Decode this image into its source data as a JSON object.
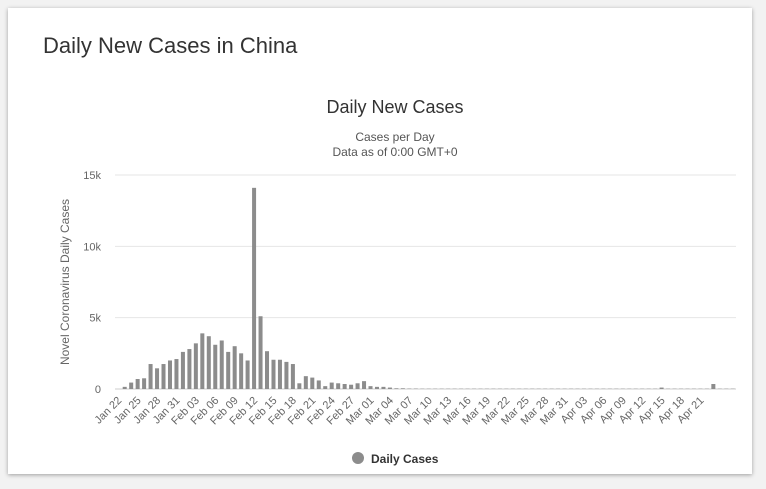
{
  "page": {
    "heading": "Daily New Cases in China"
  },
  "chart_data": {
    "type": "bar",
    "title": "Daily New Cases",
    "subtitle_lines": [
      "Cases per Day",
      "Data as of 0:00 GMT+0"
    ],
    "ylabel": "Novel Coronavirus Daily Cases",
    "xlabel": "",
    "ylim": [
      0,
      15000
    ],
    "y_ticks": [
      0,
      5000,
      10000,
      15000
    ],
    "y_tick_labels": [
      "0",
      "5k",
      "10k",
      "15k"
    ],
    "x_tick_labels": [
      "Jan 22",
      "Jan 25",
      "Jan 28",
      "Jan 31",
      "Feb 03",
      "Feb 06",
      "Feb 09",
      "Feb 12",
      "Feb 15",
      "Feb 18",
      "Feb 21",
      "Feb 24",
      "Feb 27",
      "Mar 01",
      "Mar 04",
      "Mar 07",
      "Mar 10",
      "Mar 13",
      "Mar 16",
      "Mar 19",
      "Mar 22",
      "Mar 25",
      "Mar 28",
      "Mar 31",
      "Apr 03",
      "Apr 06",
      "Apr 09",
      "Apr 12",
      "Apr 15",
      "Apr 18",
      "Apr 21"
    ],
    "grid": true,
    "legend_position": "bottom-center",
    "series": [
      {
        "name": "Daily Cases",
        "color": "#8c8c8c",
        "start_date": "Jan 22",
        "values": [
          0,
          150,
          450,
          700,
          750,
          1750,
          1450,
          1750,
          2000,
          2100,
          2600,
          2800,
          3200,
          3900,
          3700,
          3100,
          3400,
          2600,
          3000,
          2500,
          2000,
          14100,
          5100,
          2650,
          2050,
          2050,
          1900,
          1750,
          400,
          900,
          800,
          600,
          200,
          450,
          400,
          350,
          300,
          400,
          550,
          200,
          150,
          150,
          100,
          50,
          50,
          30,
          30,
          20,
          20,
          20,
          20,
          20,
          20,
          20,
          20,
          20,
          20,
          20,
          20,
          20,
          20,
          20,
          20,
          20,
          20,
          20,
          20,
          20,
          20,
          20,
          20,
          20,
          20,
          20,
          20,
          20,
          20,
          20,
          20,
          20,
          20,
          20,
          20,
          20,
          100,
          20,
          20,
          20,
          20,
          20,
          20,
          20,
          350,
          20,
          20,
          20
        ]
      }
    ]
  }
}
